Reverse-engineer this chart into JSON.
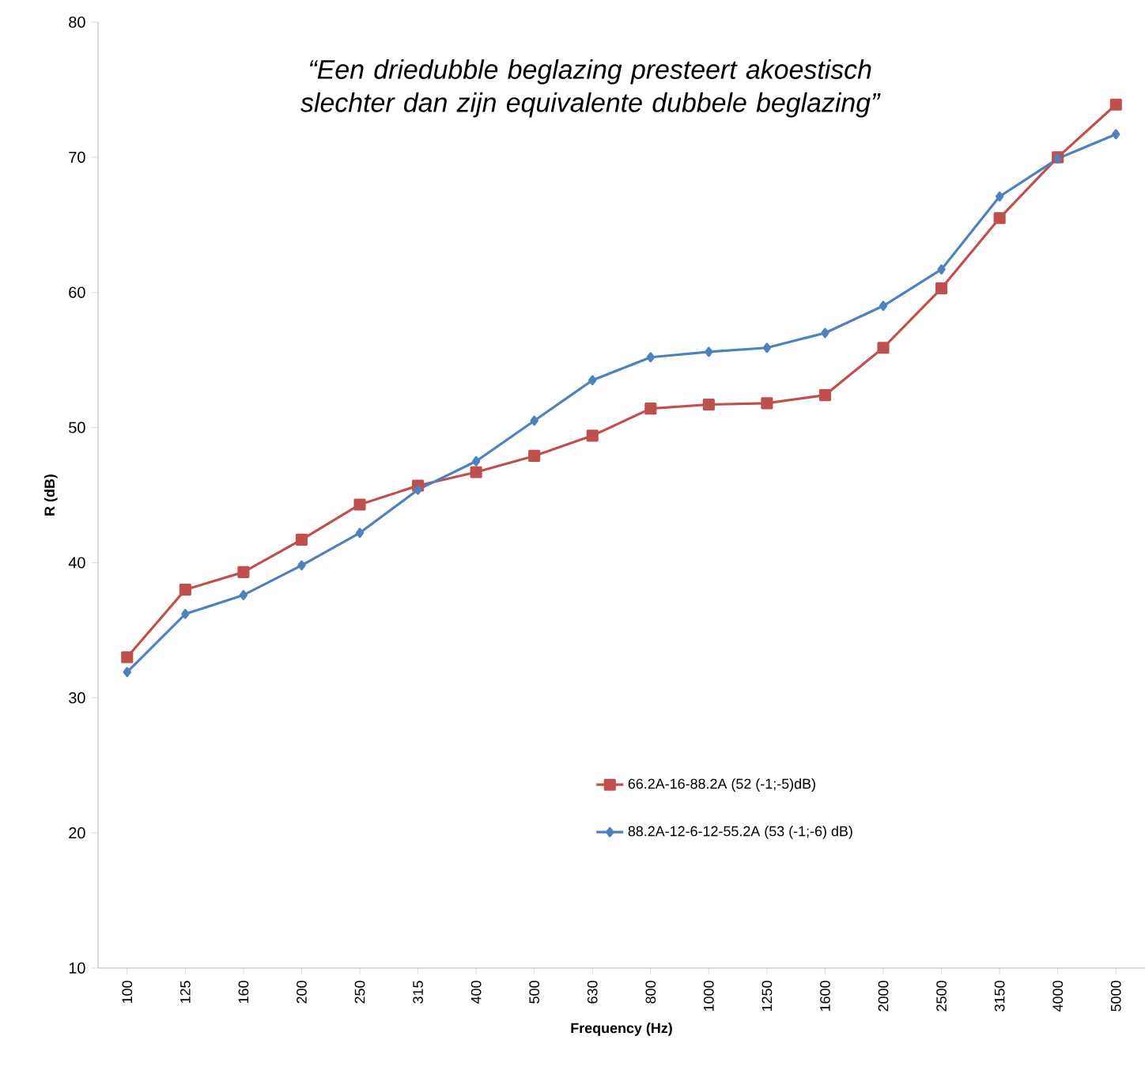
{
  "chart_data": {
    "type": "line",
    "title": "“Een driedubble beglazing presteert akoestisch slechter dan zijn equivalente dubbele beglazing”",
    "categories": [
      "100",
      "125",
      "160",
      "200",
      "250",
      "315",
      "400",
      "500",
      "630",
      "800",
      "1000",
      "1250",
      "1600",
      "2000",
      "2500",
      "3150",
      "4000",
      "5000"
    ],
    "xlabel": "Frequency (Hz)",
    "ylabel": "R (dB)",
    "ylim": [
      10,
      80
    ],
    "yticks": [
      10,
      20,
      30,
      40,
      50,
      60,
      70,
      80
    ],
    "grid": false,
    "legend": "bottom right",
    "series": [
      {
        "name": "66.2A-16-88.2A (52 (-1;-5)dB)",
        "color": "#c0504d",
        "marker": "square",
        "values": [
          33.0,
          38.0,
          39.3,
          41.7,
          44.3,
          45.7,
          46.7,
          47.9,
          49.4,
          51.4,
          51.7,
          51.8,
          52.4,
          55.9,
          60.3,
          65.5,
          70.0,
          73.9
        ]
      },
      {
        "name": "88.2A-12-6-12-55.2A (53 (-1;-6) dB)",
        "color": "#4f81bd",
        "marker": "diamond",
        "values": [
          31.9,
          36.2,
          37.6,
          39.8,
          42.2,
          45.4,
          47.5,
          50.5,
          53.5,
          55.2,
          55.6,
          55.9,
          57.0,
          59.0,
          61.7,
          67.1,
          69.9,
          71.7
        ]
      }
    ]
  }
}
